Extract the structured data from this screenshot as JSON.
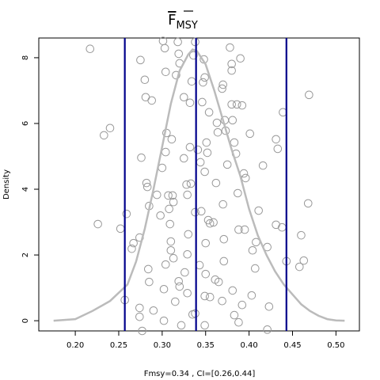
{
  "chart_data": {
    "type": "density",
    "title": "F",
    "title_subscript": "MSY",
    "x_label": "Fmsy=0.34 , CI=[0.26,0.44]",
    "y_label": "Density",
    "xlim": [
      0.158,
      0.527
    ],
    "ylim": [
      -0.31,
      8.6
    ],
    "xticks": [
      {
        "value": 0.2,
        "label": "0.20"
      },
      {
        "value": 0.25,
        "label": "0.25"
      },
      {
        "value": 0.3,
        "label": "0.30"
      },
      {
        "value": 0.35,
        "label": "0.35"
      },
      {
        "value": 0.4,
        "label": "0.40"
      },
      {
        "value": 0.45,
        "label": "0.45"
      },
      {
        "value": 0.5,
        "label": "0.50"
      }
    ],
    "yticks": [
      0,
      2,
      4,
      6,
      8
    ],
    "density": {
      "color": "#bbbbbb",
      "x": [
        0.175,
        0.2,
        0.22,
        0.24,
        0.26,
        0.27,
        0.28,
        0.29,
        0.3,
        0.31,
        0.32,
        0.33,
        0.335,
        0.34,
        0.35,
        0.36,
        0.37,
        0.38,
        0.39,
        0.4,
        0.41,
        0.42,
        0.43,
        0.44,
        0.45,
        0.46,
        0.47,
        0.48,
        0.49,
        0.5,
        0.51
      ],
      "y": [
        0.0,
        0.05,
        0.3,
        0.6,
        1.1,
        1.8,
        2.8,
        4.0,
        5.3,
        6.6,
        7.6,
        8.1,
        8.25,
        8.2,
        7.8,
        7.0,
        6.1,
        5.2,
        4.4,
        3.4,
        2.6,
        2.0,
        1.5,
        1.1,
        0.8,
        0.5,
        0.3,
        0.15,
        0.05,
        0.01,
        0.0
      ]
    },
    "points": {
      "color": "#999999",
      "x": [
        0.217,
        0.24,
        0.233,
        0.226,
        0.252,
        0.259,
        0.265,
        0.267,
        0.274,
        0.275,
        0.28,
        0.281,
        0.288,
        0.276,
        0.282,
        0.283,
        0.285,
        0.284,
        0.285,
        0.257,
        0.274,
        0.274,
        0.277,
        0.29,
        0.294,
        0.298,
        0.3,
        0.301,
        0.303,
        0.304,
        0.305,
        0.304,
        0.304,
        0.302,
        0.302,
        0.307,
        0.308,
        0.309,
        0.31,
        0.31,
        0.311,
        0.312,
        0.313,
        0.313,
        0.315,
        0.316,
        0.318,
        0.319,
        0.32,
        0.319,
        0.32,
        0.322,
        0.325,
        0.325,
        0.328,
        0.329,
        0.329,
        0.329,
        0.33,
        0.332,
        0.332,
        0.333,
        0.334,
        0.336,
        0.338,
        0.338,
        0.338,
        0.341,
        0.343,
        0.344,
        0.345,
        0.346,
        0.347,
        0.348,
        0.349,
        0.349,
        0.35,
        0.35,
        0.349,
        0.349,
        0.351,
        0.352,
        0.353,
        0.354,
        0.355,
        0.355,
        0.359,
        0.362,
        0.363,
        0.364,
        0.365,
        0.369,
        0.37,
        0.37,
        0.371,
        0.371,
        0.369,
        0.372,
        0.373,
        0.375,
        0.378,
        0.38,
        0.38,
        0.38,
        0.381,
        0.381,
        0.383,
        0.385,
        0.386,
        0.387,
        0.388,
        0.39,
        0.392,
        0.394,
        0.396,
        0.395,
        0.401,
        0.404,
        0.407,
        0.408,
        0.403,
        0.411,
        0.416,
        0.421,
        0.423,
        0.421,
        0.431,
        0.431,
        0.433,
        0.438,
        0.439,
        0.443,
        0.46,
        0.458,
        0.463,
        0.468,
        0.469,
        0.388,
        0.392,
        0.383,
        0.326,
        0.335,
        0.361
      ],
      "y": [
        8.27,
        5.86,
        5.64,
        2.94,
        2.8,
        3.25,
        2.19,
        2.36,
        2.53,
        7.93,
        7.33,
        6.8,
        6.7,
        4.96,
        4.19,
        4.07,
        3.49,
        1.57,
        1.18,
        0.63,
        0.39,
        0.12,
        -0.31,
        0.31,
        3.83,
        3.2,
        4.65,
        8.51,
        8.29,
        7.57,
        5.71,
        5.13,
        1.71,
        0.96,
        0.0,
        3.81,
        3.4,
        2.94,
        2.41,
        2.14,
        5.52,
        3.81,
        3.61,
        1.9,
        0.58,
        7.47,
        8.48,
        8.12,
        7.83,
        1.2,
        1.04,
        -0.14,
        6.8,
        4.94,
        4.14,
        3.83,
        2.02,
        0.84,
        2.63,
        6.63,
        5.28,
        4.17,
        7.28,
        8.07,
        8.48,
        3.3,
        0.22,
        5.2,
        1.69,
        4.82,
        3.33,
        6.65,
        7.25,
        7.95,
        7.4,
        4.53,
        2.36,
        1.42,
        0.75,
        -0.14,
        5.42,
        5.11,
        3.06,
        6.34,
        2.96,
        0.72,
        2.99,
        4.19,
        6.02,
        5.73,
        1.18,
        7.06,
        7.18,
        3.54,
        2.48,
        1.81,
        0.6,
        6.1,
        5.78,
        4.75,
        8.31,
        7.81,
        7.61,
        6.58,
        6.1,
        0.92,
        5.42,
        5.08,
        6.58,
        3.88,
        2.77,
        7.98,
        6.55,
        4.48,
        4.34,
        2.77,
        5.69,
        2.14,
        1.59,
        2.39,
        0.77,
        3.35,
        4.72,
        2.24,
        0.43,
        -0.27,
        2.92,
        5.52,
        5.23,
        2.84,
        6.34,
        1.81,
        2.6,
        1.64,
        1.83,
        3.57,
        6.87,
        -0.05,
        0.48,
        0.17,
        1.47,
        0.19,
        1.25
      ]
    },
    "vlines": {
      "color": "#00008b",
      "values": [
        0.257,
        0.339,
        0.443
      ]
    }
  }
}
